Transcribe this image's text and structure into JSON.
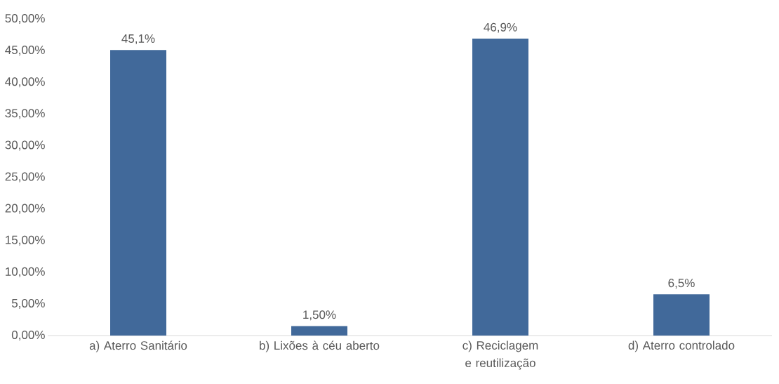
{
  "chart_data": {
    "type": "bar",
    "categories": [
      "a) Aterro Sanitário",
      "b) Lixões à céu aberto",
      "c) Reciclagem e reutilização",
      "d) Aterro controlado"
    ],
    "values": [
      45.1,
      1.5,
      46.9,
      6.5
    ],
    "value_labels": [
      "45,1%",
      "1,50%",
      "46,9%",
      "6,5%"
    ],
    "color": "#41699a",
    "ylim": [
      0,
      50
    ],
    "yticks": [
      {
        "value": 0,
        "label": "0,00%"
      },
      {
        "value": 5,
        "label": "5,00%"
      },
      {
        "value": 10,
        "label": "10,00%"
      },
      {
        "value": 15,
        "label": "15,00%"
      },
      {
        "value": 20,
        "label": "20,00%"
      },
      {
        "value": 25,
        "label": "25,00%"
      },
      {
        "value": 30,
        "label": "30,00%"
      },
      {
        "value": 35,
        "label": "35,00%"
      },
      {
        "value": 40,
        "label": "40,00%"
      },
      {
        "value": 45,
        "label": "45,00%"
      },
      {
        "value": 50,
        "label": "50,00%"
      }
    ],
    "grid": false
  }
}
